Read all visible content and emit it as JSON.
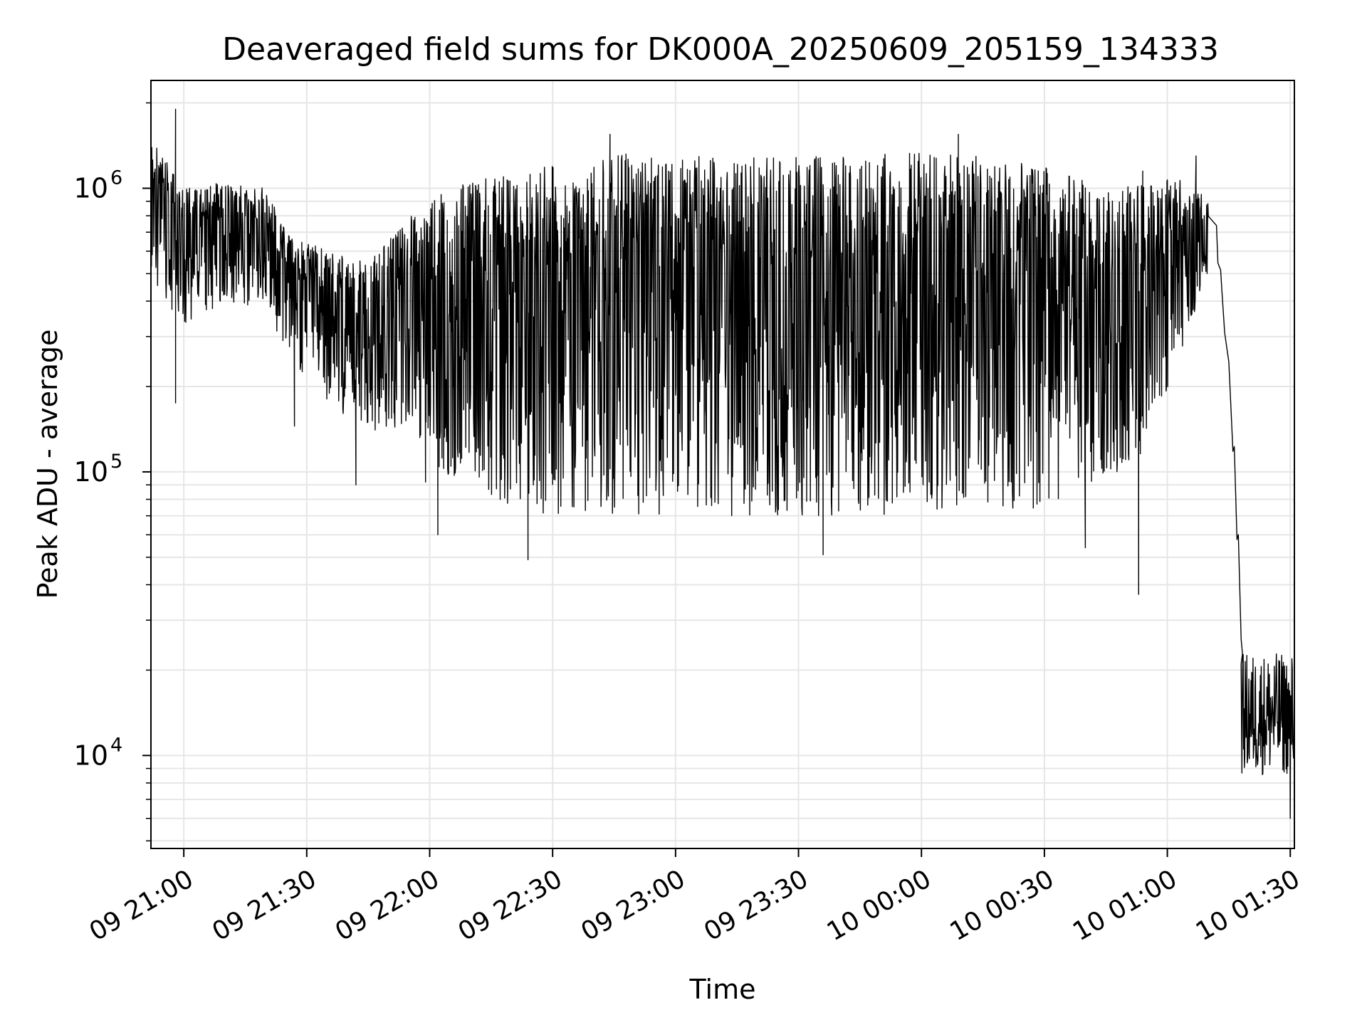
{
  "chart_data": {
    "type": "line",
    "title": "Deaveraged field sums for DK000A_20250609_205159_134333",
    "xlabel": "Time",
    "ylabel": "Peak ADU - average",
    "yscale": "log",
    "xlim": [
      "2025-06-09 20:51:59",
      "2025-06-10 01:31:00"
    ],
    "ylim": [
      4700,
      2400000
    ],
    "x_ticks": [
      {
        "value": "2025-06-09 21:00",
        "label": "09 21:00"
      },
      {
        "value": "2025-06-09 21:30",
        "label": "09 21:30"
      },
      {
        "value": "2025-06-09 22:00",
        "label": "09 22:00"
      },
      {
        "value": "2025-06-09 22:30",
        "label": "09 22:30"
      },
      {
        "value": "2025-06-09 23:00",
        "label": "09 23:00"
      },
      {
        "value": "2025-06-09 23:30",
        "label": "09 23:30"
      },
      {
        "value": "2025-06-10 00:00",
        "label": "10 00:00"
      },
      {
        "value": "2025-06-10 00:30",
        "label": "10 00:30"
      },
      {
        "value": "2025-06-10 01:00",
        "label": "10 01:00"
      },
      {
        "value": "2025-06-10 01:30",
        "label": "10 01:30"
      }
    ],
    "y_ticks": [
      {
        "value": 10000,
        "base": "10",
        "exp": "4"
      },
      {
        "value": 100000,
        "base": "10",
        "exp": "5"
      },
      {
        "value": 1000000,
        "base": "10",
        "exp": "6"
      }
    ],
    "grid": true,
    "series_color": "#000000",
    "envelope": [
      {
        "t": "2025-06-09 20:52",
        "upper": 1500000,
        "lower": 480000
      },
      {
        "t": "2025-06-09 21:00",
        "upper": 1000000,
        "lower": 320000
      },
      {
        "t": "2025-06-09 21:10",
        "upper": 1050000,
        "lower": 400000
      },
      {
        "t": "2025-06-09 21:20",
        "upper": 1000000,
        "lower": 370000
      },
      {
        "t": "2025-06-09 21:25",
        "upper": 700000,
        "lower": 260000
      },
      {
        "t": "2025-06-09 21:35",
        "upper": 600000,
        "lower": 180000
      },
      {
        "t": "2025-06-09 21:45",
        "upper": 550000,
        "lower": 130000
      },
      {
        "t": "2025-06-09 21:55",
        "upper": 800000,
        "lower": 150000
      },
      {
        "t": "2025-06-09 22:05",
        "upper": 1000000,
        "lower": 90000
      },
      {
        "t": "2025-06-09 22:15",
        "upper": 1100000,
        "lower": 80000
      },
      {
        "t": "2025-06-09 22:30",
        "upper": 1200000,
        "lower": 70000
      },
      {
        "t": "2025-06-09 22:45",
        "upper": 1350000,
        "lower": 70000
      },
      {
        "t": "2025-06-09 23:00",
        "upper": 1300000,
        "lower": 70000
      },
      {
        "t": "2025-06-09 23:15",
        "upper": 1300000,
        "lower": 70000
      },
      {
        "t": "2025-06-09 23:30",
        "upper": 1300000,
        "lower": 70000
      },
      {
        "t": "2025-06-09 23:45",
        "upper": 1300000,
        "lower": 70000
      },
      {
        "t": "2025-06-10 00:00",
        "upper": 1350000,
        "lower": 70000
      },
      {
        "t": "2025-06-10 00:15",
        "upper": 1300000,
        "lower": 70000
      },
      {
        "t": "2025-06-10 00:30",
        "upper": 1200000,
        "lower": 75000
      },
      {
        "t": "2025-06-10 00:45",
        "upper": 1000000,
        "lower": 90000
      },
      {
        "t": "2025-06-10 00:55",
        "upper": 1050000,
        "lower": 120000
      },
      {
        "t": "2025-06-10 01:05",
        "upper": 1100000,
        "lower": 300000
      },
      {
        "t": "2025-06-10 01:10",
        "upper": 950000,
        "lower": 500000
      }
    ],
    "spikes": [
      {
        "t": "2025-06-09 20:58",
        "value": 1900000
      },
      {
        "t": "2025-06-09 20:58",
        "value": 175000
      },
      {
        "t": "2025-06-09 21:27",
        "value": 145000
      },
      {
        "t": "2025-06-09 21:42",
        "value": 90000
      },
      {
        "t": "2025-06-09 21:59",
        "value": 92000
      },
      {
        "t": "2025-06-09 22:02",
        "value": 60000
      },
      {
        "t": "2025-06-09 22:24",
        "value": 49000
      },
      {
        "t": "2025-06-09 22:44",
        "value": 1550000
      },
      {
        "t": "2025-06-09 23:36",
        "value": 51000
      },
      {
        "t": "2025-06-10 00:09",
        "value": 1550000
      },
      {
        "t": "2025-06-10 00:40",
        "value": 54000
      },
      {
        "t": "2025-06-10 00:53",
        "value": 37000
      },
      {
        "t": "2025-06-10 00:54",
        "value": 1150000
      },
      {
        "t": "2025-06-10 01:07",
        "value": 1300000
      }
    ],
    "decline": [
      {
        "t": "2025-06-10 01:12",
        "value": 650000
      },
      {
        "t": "2025-06-10 01:13",
        "value": 450000
      },
      {
        "t": "2025-06-10 01:14",
        "value": 330000
      },
      {
        "t": "2025-06-10 01:15",
        "value": 230000
      },
      {
        "t": "2025-06-10 01:16",
        "value": 120000
      },
      {
        "t": "2025-06-10 01:17",
        "value": 60000
      },
      {
        "t": "2025-06-10 01:18",
        "value": 28000
      }
    ],
    "tail": {
      "from": "2025-06-10 01:18",
      "to": "2025-06-10 01:31",
      "upper": 23000,
      "lower": 8500,
      "min": 6000
    }
  }
}
